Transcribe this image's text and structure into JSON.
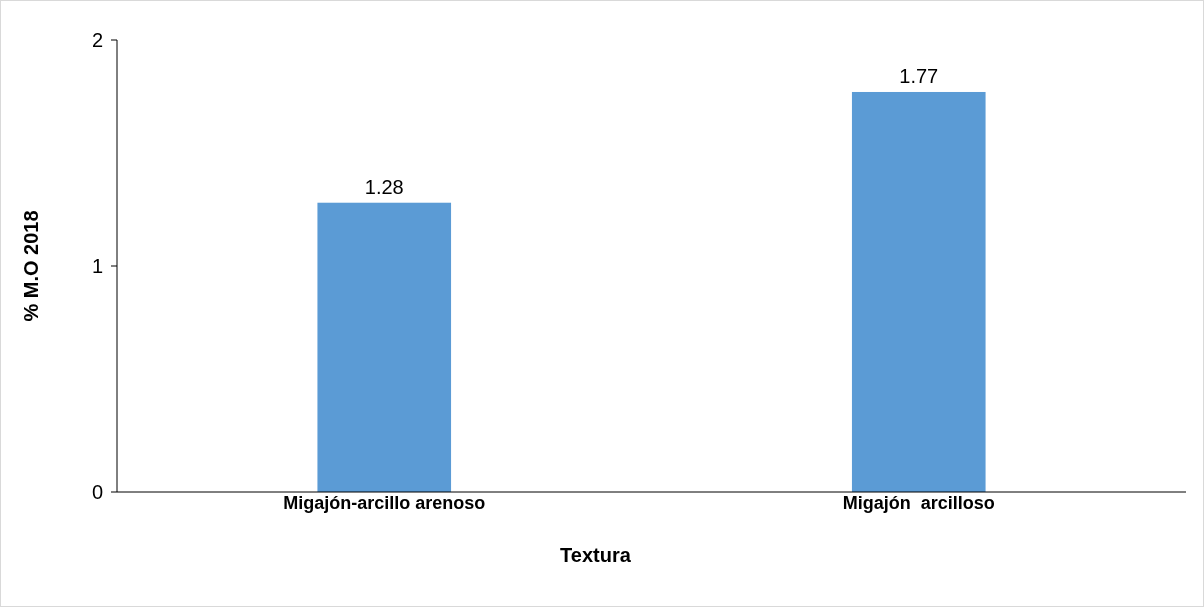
{
  "chart_data": {
    "type": "bar",
    "categories": [
      "Migajón-arcillo arenoso",
      "Migajón  arcilloso"
    ],
    "values": [
      1.28,
      1.77
    ],
    "color": "#5b9bd5",
    "xlabel": "Textura",
    "ylabel": "% M.O 2018",
    "ylim": [
      0,
      2
    ],
    "yticks": [
      0,
      1,
      2
    ],
    "data_labels": true,
    "grid": false
  }
}
